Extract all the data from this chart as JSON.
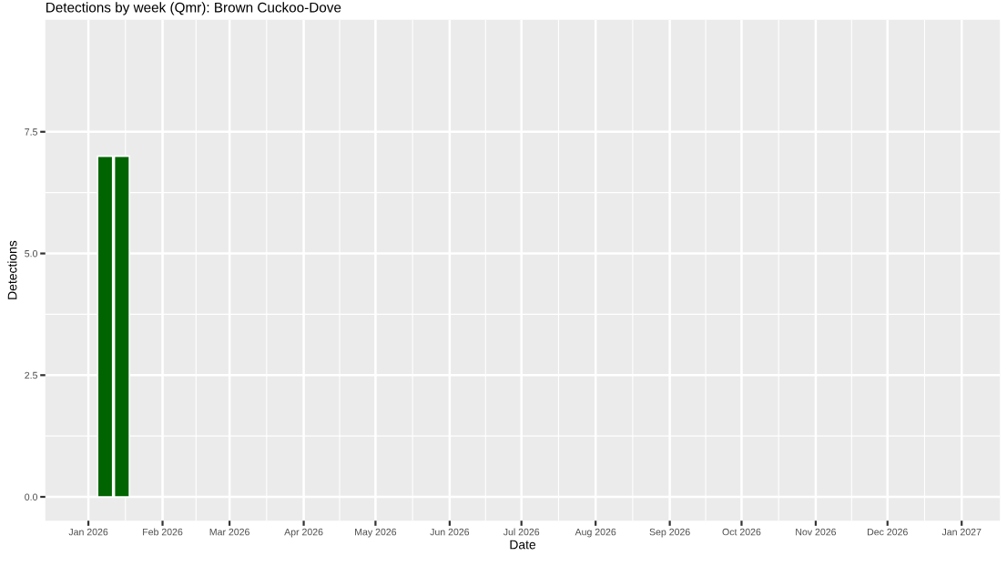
{
  "chart_data": {
    "type": "bar",
    "title": "Detections by week (Qmr): Brown Cuckoo-Dove",
    "xlabel": "Date",
    "ylabel": "Detections",
    "x": [
      "2026-01-08",
      "2026-01-15"
    ],
    "values": [
      7,
      7
    ],
    "color": "#006400",
    "xlim": [
      "2025-12-14",
      "2027-01-17"
    ],
    "xticks": [
      {
        "value": "2026-01-01",
        "label": "Jan 2026"
      },
      {
        "value": "2026-02-01",
        "label": "Feb 2026"
      },
      {
        "value": "2026-03-01",
        "label": "Mar 2026"
      },
      {
        "value": "2026-04-01",
        "label": "Apr 2026"
      },
      {
        "value": "2026-05-01",
        "label": "May 2026"
      },
      {
        "value": "2026-06-01",
        "label": "Jun 2026"
      },
      {
        "value": "2026-07-01",
        "label": "Jul 2026"
      },
      {
        "value": "2026-08-01",
        "label": "Aug 2026"
      },
      {
        "value": "2026-09-01",
        "label": "Sep 2026"
      },
      {
        "value": "2026-10-01",
        "label": "Oct 2026"
      },
      {
        "value": "2026-11-01",
        "label": "Nov 2026"
      },
      {
        "value": "2026-12-01",
        "label": "Dec 2026"
      },
      {
        "value": "2027-01-01",
        "label": "Jan 2027"
      }
    ],
    "ylim": [
      -0.49,
      9.8
    ],
    "yticks": [
      {
        "value": 0,
        "label": "0.0"
      },
      {
        "value": 2.5,
        "label": "2.5"
      },
      {
        "value": 5,
        "label": "5.0"
      },
      {
        "value": 7.5,
        "label": "7.5"
      }
    ],
    "grid": true,
    "legend": false
  }
}
